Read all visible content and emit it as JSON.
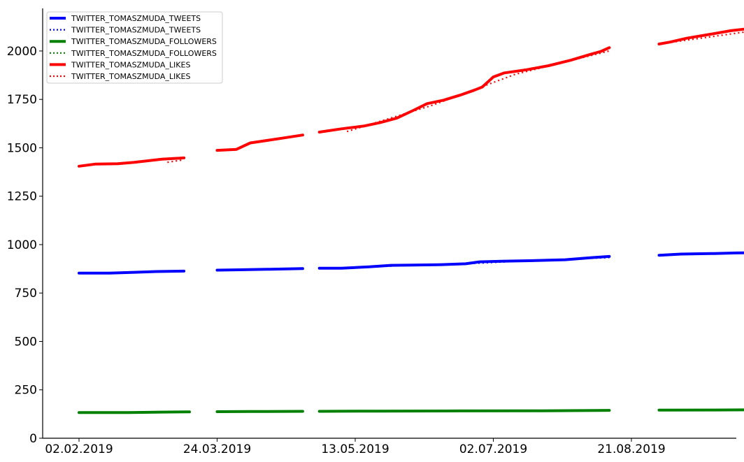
{
  "chart_data": {
    "type": "line",
    "x_ticks": [
      "02.02.2019",
      "24.03.2019",
      "13.05.2019",
      "02.07.2019",
      "21.08.2019"
    ],
    "ylim": [
      0,
      2220
    ],
    "y_ticks": [
      0,
      250,
      500,
      750,
      1000,
      1250,
      1500,
      1750,
      2000
    ],
    "x_range": [
      "2019-01-24",
      "2019-10-01"
    ],
    "grid": false,
    "legend_position": "top-left",
    "series": [
      {
        "name": "TWITTER_TOMASZMUDA_TWEETS",
        "color": "#0000ff",
        "style": "solid",
        "segments": [
          [
            [
              "2019-02-02",
              853
            ],
            [
              "2019-02-13",
              853
            ],
            [
              "2019-02-22",
              857
            ],
            [
              "2019-03-02",
              861
            ],
            [
              "2019-03-12",
              863
            ]
          ],
          [
            [
              "2019-03-24",
              868
            ],
            [
              "2019-04-01",
              870
            ],
            [
              "2019-04-12",
              873
            ],
            [
              "2019-04-24",
              876
            ]
          ],
          [
            [
              "2019-04-30",
              878
            ],
            [
              "2019-05-08",
              878
            ],
            [
              "2019-05-18",
              885
            ],
            [
              "2019-05-26",
              893
            ],
            [
              "2019-06-03",
              894
            ],
            [
              "2019-06-12",
              896
            ],
            [
              "2019-06-22",
              901
            ],
            [
              "2019-06-27",
              911
            ],
            [
              "2019-07-05",
              914
            ],
            [
              "2019-07-15",
              917
            ],
            [
              "2019-07-28",
              922
            ],
            [
              "2019-08-07",
              933
            ],
            [
              "2019-08-13",
              939
            ]
          ],
          [
            [
              "2019-08-31",
              945
            ],
            [
              "2019-09-08",
              951
            ],
            [
              "2019-09-20",
              954
            ],
            [
              "2019-09-28",
              957
            ],
            [
              "2019-10-07",
              959
            ]
          ]
        ]
      },
      {
        "name": "TWITTER_TOMASZMUDA_TWEETS",
        "color": "#0000ff",
        "style": "dotted",
        "segments": [
          [
            [
              "2019-05-12",
              880
            ],
            [
              "2019-06-01",
              893
            ],
            [
              "2019-06-22",
              901
            ],
            [
              "2019-07-12",
              915
            ],
            [
              "2019-08-13",
              933
            ]
          ],
          [
            [
              "2019-08-31",
              946
            ],
            [
              "2019-10-07",
              958
            ]
          ]
        ]
      },
      {
        "name": "TWITTER_TOMASZMUDA_FOLLOWERS",
        "color": "#008000",
        "style": "solid",
        "segments": [
          [
            [
              "2019-02-02",
              133
            ],
            [
              "2019-02-20",
              133
            ],
            [
              "2019-03-04",
              135
            ],
            [
              "2019-03-14",
              136
            ]
          ],
          [
            [
              "2019-03-24",
              137
            ],
            [
              "2019-04-05",
              138
            ],
            [
              "2019-04-24",
              139
            ]
          ],
          [
            [
              "2019-04-30",
              139
            ],
            [
              "2019-05-20",
              140
            ],
            [
              "2019-06-20",
              141
            ],
            [
              "2019-07-20",
              142
            ],
            [
              "2019-08-13",
              144
            ]
          ],
          [
            [
              "2019-08-31",
              145
            ],
            [
              "2019-09-20",
              146
            ],
            [
              "2019-10-07",
              147
            ]
          ]
        ]
      },
      {
        "name": "TWITTER_TOMASZMUDA_FOLLOWERS",
        "color": "#008000",
        "style": "dotted",
        "segments": [
          [
            [
              "2019-05-12",
              139
            ],
            [
              "2019-08-13",
              143
            ]
          ],
          [
            [
              "2019-08-31",
              145
            ],
            [
              "2019-10-07",
              146
            ]
          ]
        ]
      },
      {
        "name": "TWITTER_TOMASZMUDA_LIKES",
        "color": "#ff0000",
        "style": "solid",
        "segments": [
          [
            [
              "2019-02-02",
              1405
            ],
            [
              "2019-02-08",
              1416
            ],
            [
              "2019-02-16",
              1418
            ],
            [
              "2019-02-22",
              1425
            ],
            [
              "2019-03-04",
              1441
            ],
            [
              "2019-03-12",
              1448
            ]
          ],
          [
            [
              "2019-03-24",
              1487
            ],
            [
              "2019-03-31",
              1492
            ],
            [
              "2019-04-05",
              1525
            ],
            [
              "2019-04-12",
              1540
            ],
            [
              "2019-04-18",
              1553
            ],
            [
              "2019-04-24",
              1566
            ]
          ],
          [
            [
              "2019-04-30",
              1581
            ],
            [
              "2019-05-08",
              1598
            ],
            [
              "2019-05-16",
              1612
            ],
            [
              "2019-05-22",
              1630
            ],
            [
              "2019-05-28",
              1653
            ],
            [
              "2019-06-03",
              1693
            ],
            [
              "2019-06-08",
              1728
            ],
            [
              "2019-06-14",
              1746
            ],
            [
              "2019-06-20",
              1772
            ],
            [
              "2019-06-25",
              1797
            ],
            [
              "2019-06-28",
              1814
            ],
            [
              "2019-07-02",
              1866
            ],
            [
              "2019-07-06",
              1887
            ],
            [
              "2019-07-14",
              1903
            ],
            [
              "2019-07-22",
              1924
            ],
            [
              "2019-07-30",
              1952
            ],
            [
              "2019-08-06",
              1982
            ],
            [
              "2019-08-10",
              1998
            ],
            [
              "2019-08-13",
              2017
            ]
          ],
          [
            [
              "2019-08-31",
              2036
            ],
            [
              "2019-09-04",
              2046
            ],
            [
              "2019-09-10",
              2066
            ],
            [
              "2019-09-18",
              2085
            ],
            [
              "2019-09-26",
              2105
            ],
            [
              "2019-10-07",
              2123
            ]
          ]
        ]
      },
      {
        "name": "TWITTER_TOMASZMUDA_LIKES",
        "color": "#ff0000",
        "style": "dotted",
        "segments": [
          [
            [
              "2019-03-06",
              1425
            ],
            [
              "2019-03-12",
              1438
            ]
          ],
          [
            [
              "2019-05-10",
              1584
            ],
            [
              "2019-06-10",
              1720
            ],
            [
              "2019-07-10",
              1880
            ],
            [
              "2019-08-13",
              2000
            ]
          ],
          [
            [
              "2019-08-31",
              2036
            ],
            [
              "2019-10-07",
              2110
            ]
          ]
        ]
      }
    ]
  }
}
